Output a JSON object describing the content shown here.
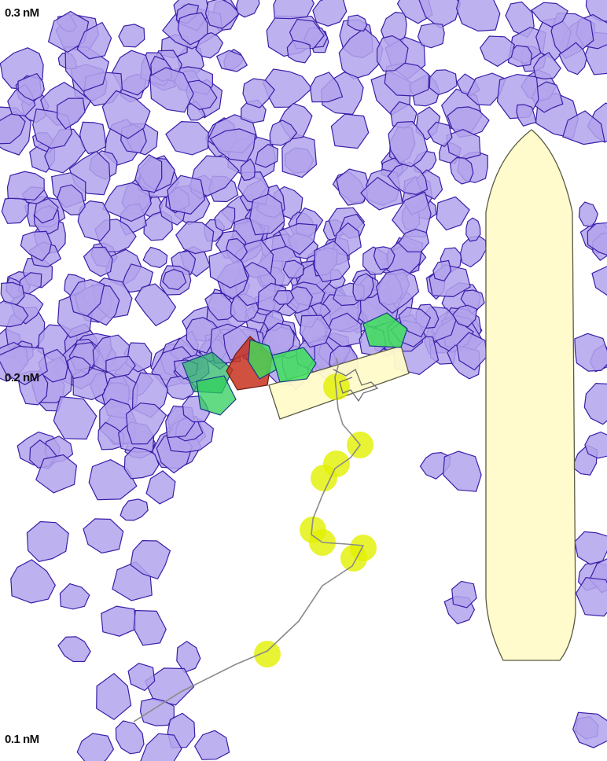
{
  "scale_labels": {
    "top": "0.3 nM",
    "middle": "0.2 nM",
    "bottom": "0.1 nM"
  },
  "colors": {
    "cell_fill": "#b3a3ec",
    "cell_stroke": "#3a1ea8",
    "barrier_fill": "#fffbc9",
    "barrier_stroke": "#5a5a44",
    "activated_green": "#3fe05a",
    "activated_red": "#c8321e",
    "trail_marker": "#e2f000",
    "trail_line": "#8a8a8a"
  }
}
